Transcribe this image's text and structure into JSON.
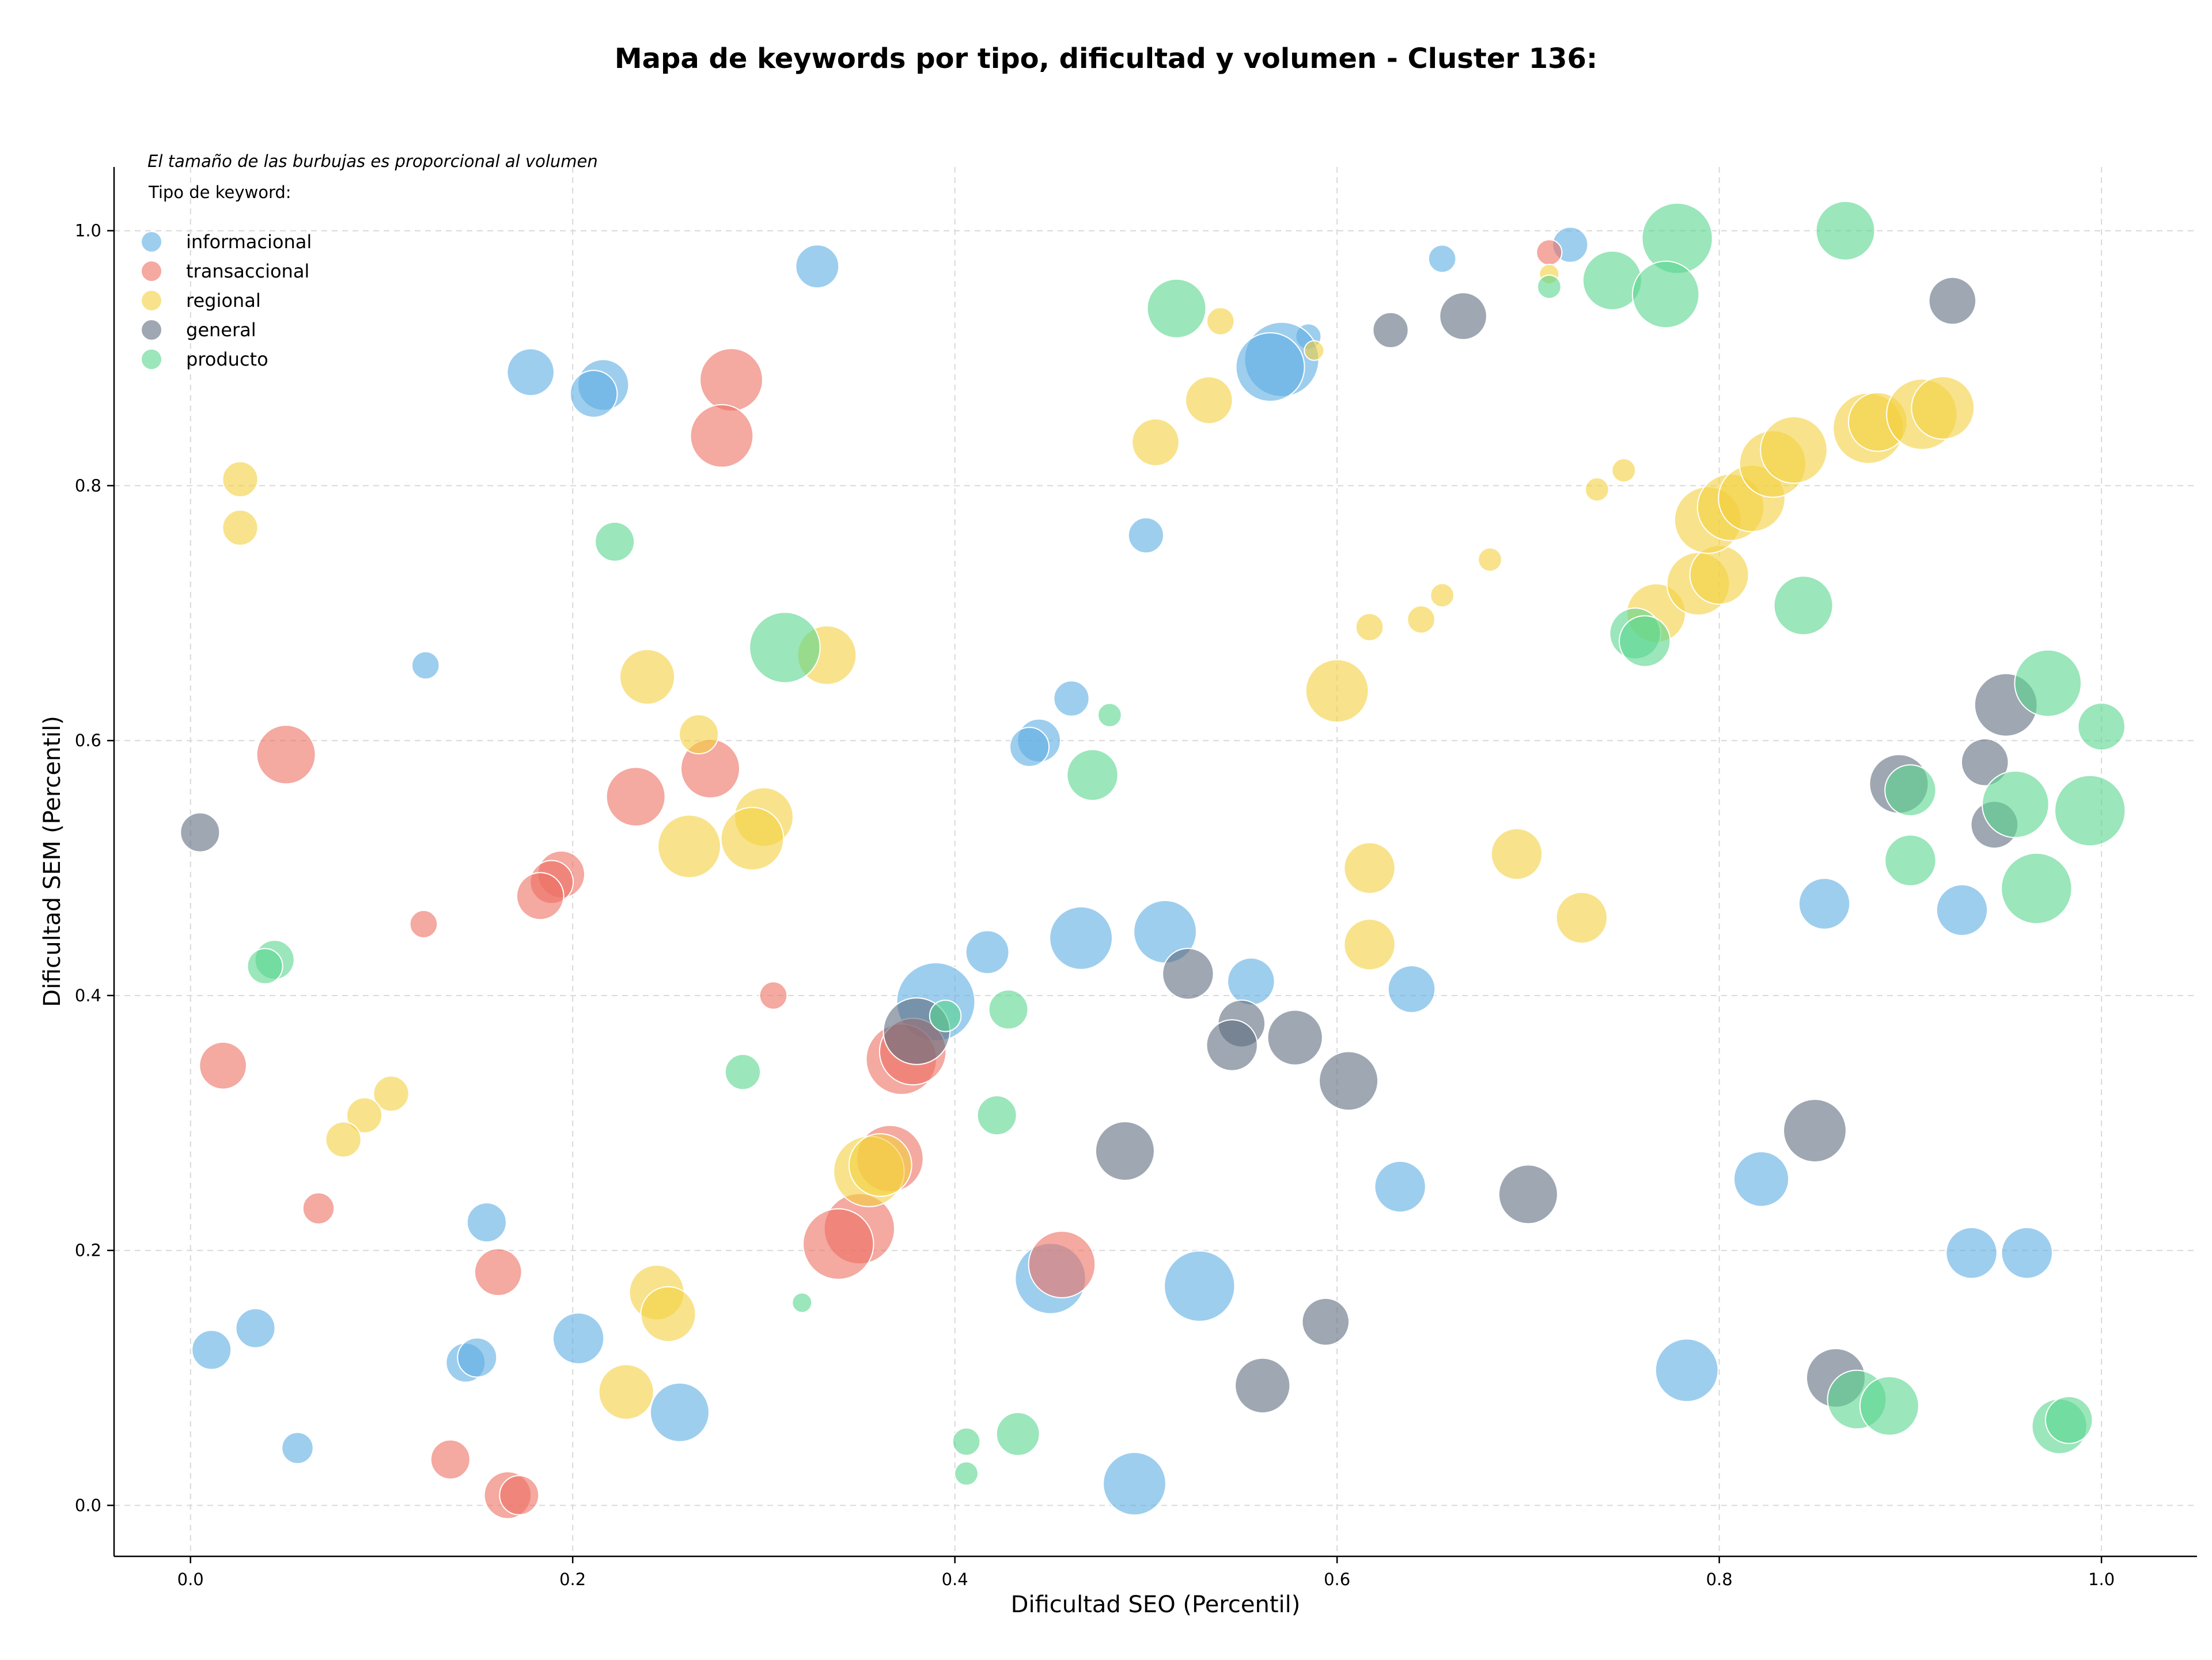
{
  "chart_data": {
    "type": "scatter",
    "title": "Mapa de keywords por tipo, dificultad y volumen - Cluster 136:",
    "xlabel": "Dificultad SEO (Percentil)",
    "ylabel": "Dificultad SEM (Percentil)",
    "xlim": [
      -0.04,
      1.05
    ],
    "ylim": [
      -0.04,
      1.05
    ],
    "xticks": [
      "0.0",
      "0.2",
      "0.4",
      "0.6",
      "0.8",
      "1.0"
    ],
    "yticks": [
      "0.0",
      "0.2",
      "0.4",
      "0.6",
      "0.8",
      "1.0"
    ],
    "grid": true,
    "legend_position": "top-left",
    "legend_title": "Tipo de keyword:",
    "note": "El tamaño de las burbujas es proporcional al volumen",
    "series": [
      {
        "name": "informacional",
        "color": "#5dade2",
        "points": [
          [
            0.328,
            0.972,
            2.2
          ],
          [
            0.178,
            0.889,
            2.4
          ],
          [
            0.216,
            0.879,
            2.6
          ],
          [
            0.211,
            0.872,
            2.4
          ],
          [
            0.655,
            0.978,
            1.4
          ],
          [
            0.722,
            0.989,
            1.8
          ],
          [
            0.585,
            0.917,
            1.3
          ],
          [
            0.571,
            0.899,
            3.8
          ],
          [
            0.565,
            0.893,
            3.5
          ],
          [
            0.123,
            0.659,
            1.4
          ],
          [
            0.5,
            0.761,
            1.8
          ],
          [
            0.461,
            0.633,
            1.8
          ],
          [
            0.444,
            0.6,
            2.2
          ],
          [
            0.439,
            0.595,
            2.0
          ],
          [
            0.39,
            0.395,
            4.0
          ],
          [
            0.417,
            0.434,
            2.2
          ],
          [
            0.466,
            0.445,
            3.2
          ],
          [
            0.51,
            0.45,
            3.2
          ],
          [
            0.555,
            0.411,
            2.4
          ],
          [
            0.639,
            0.405,
            2.4
          ],
          [
            0.855,
            0.472,
            2.6
          ],
          [
            0.927,
            0.467,
            2.6
          ],
          [
            0.155,
            0.222,
            2.0
          ],
          [
            0.203,
            0.131,
            2.6
          ],
          [
            0.011,
            0.122,
            2.0
          ],
          [
            0.034,
            0.139,
            2.0
          ],
          [
            0.144,
            0.112,
            2.0
          ],
          [
            0.15,
            0.116,
            2.0
          ],
          [
            0.056,
            0.045,
            1.6
          ],
          [
            0.256,
            0.073,
            3.0
          ],
          [
            0.45,
            0.178,
            3.6
          ],
          [
            0.528,
            0.172,
            3.6
          ],
          [
            0.494,
            0.017,
            3.2
          ],
          [
            0.633,
            0.25,
            2.6
          ],
          [
            0.822,
            0.256,
            2.8
          ],
          [
            0.783,
            0.106,
            3.2
          ],
          [
            0.932,
            0.198,
            2.6
          ],
          [
            0.961,
            0.198,
            2.6
          ]
        ]
      },
      {
        "name": "transaccional",
        "color": "#ec7063",
        "points": [
          [
            0.283,
            0.883,
            3.2
          ],
          [
            0.278,
            0.839,
            3.2
          ],
          [
            0.05,
            0.589,
            3.0
          ],
          [
            0.272,
            0.578,
            3.0
          ],
          [
            0.233,
            0.556,
            3.0
          ],
          [
            0.194,
            0.495,
            2.4
          ],
          [
            0.189,
            0.489,
            2.2
          ],
          [
            0.183,
            0.478,
            2.4
          ],
          [
            0.122,
            0.456,
            1.4
          ],
          [
            0.305,
            0.4,
            1.4
          ],
          [
            0.017,
            0.345,
            2.4
          ],
          [
            0.372,
            0.35,
            3.6
          ],
          [
            0.378,
            0.356,
            3.4
          ],
          [
            0.366,
            0.272,
            3.4
          ],
          [
            0.35,
            0.217,
            3.6
          ],
          [
            0.339,
            0.205,
            3.6
          ],
          [
            0.456,
            0.189,
            3.4
          ],
          [
            0.067,
            0.233,
            1.6
          ],
          [
            0.161,
            0.183,
            2.4
          ],
          [
            0.136,
            0.036,
            2.0
          ],
          [
            0.166,
            0.008,
            2.4
          ],
          [
            0.172,
            0.008,
            2.0
          ],
          [
            0.711,
            0.983,
            1.3
          ]
        ]
      },
      {
        "name": "regional",
        "color": "#f4d03f",
        "points": [
          [
            0.026,
            0.805,
            1.8
          ],
          [
            0.026,
            0.767,
            1.8
          ],
          [
            0.239,
            0.65,
            2.8
          ],
          [
            0.333,
            0.667,
            3.0
          ],
          [
            0.266,
            0.605,
            2.0
          ],
          [
            0.3,
            0.54,
            3.0
          ],
          [
            0.294,
            0.523,
            3.2
          ],
          [
            0.261,
            0.517,
            3.2
          ],
          [
            0.539,
            0.929,
            1.4
          ],
          [
            0.533,
            0.867,
            2.4
          ],
          [
            0.505,
            0.834,
            2.4
          ],
          [
            0.588,
            0.906,
            1.0
          ],
          [
            0.711,
            0.966,
            1.0
          ],
          [
            0.6,
            0.639,
            3.2
          ],
          [
            0.617,
            0.689,
            1.4
          ],
          [
            0.644,
            0.695,
            1.4
          ],
          [
            0.655,
            0.714,
            1.2
          ],
          [
            0.68,
            0.742,
            1.2
          ],
          [
            0.736,
            0.797,
            1.2
          ],
          [
            0.75,
            0.812,
            1.2
          ],
          [
            0.767,
            0.7,
            3.0
          ],
          [
            0.789,
            0.723,
            3.2
          ],
          [
            0.8,
            0.73,
            3.0
          ],
          [
            0.794,
            0.773,
            3.4
          ],
          [
            0.806,
            0.783,
            3.4
          ],
          [
            0.817,
            0.79,
            3.4
          ],
          [
            0.828,
            0.817,
            3.4
          ],
          [
            0.839,
            0.828,
            3.4
          ],
          [
            0.878,
            0.845,
            3.6
          ],
          [
            0.883,
            0.85,
            3.0
          ],
          [
            0.906,
            0.856,
            3.6
          ],
          [
            0.917,
            0.861,
            3.2
          ],
          [
            0.617,
            0.5,
            2.6
          ],
          [
            0.617,
            0.44,
            2.6
          ],
          [
            0.694,
            0.511,
            2.6
          ],
          [
            0.728,
            0.461,
            2.6
          ],
          [
            0.355,
            0.262,
            3.6
          ],
          [
            0.361,
            0.267,
            3.2
          ],
          [
            0.105,
            0.323,
            1.8
          ],
          [
            0.091,
            0.306,
            1.8
          ],
          [
            0.08,
            0.287,
            1.8
          ],
          [
            0.244,
            0.167,
            2.8
          ],
          [
            0.25,
            0.15,
            2.8
          ],
          [
            0.228,
            0.089,
            2.8
          ]
        ]
      },
      {
        "name": "general",
        "color": "#5d6d7e",
        "points": [
          [
            0.005,
            0.528,
            2.0
          ],
          [
            0.628,
            0.922,
            1.8
          ],
          [
            0.666,
            0.933,
            2.4
          ],
          [
            0.922,
            0.945,
            2.4
          ],
          [
            0.95,
            0.628,
            3.2
          ],
          [
            0.894,
            0.566,
            3.0
          ],
          [
            0.939,
            0.583,
            2.4
          ],
          [
            0.944,
            0.534,
            2.4
          ],
          [
            0.38,
            0.372,
            3.4
          ],
          [
            0.522,
            0.417,
            2.6
          ],
          [
            0.55,
            0.378,
            2.4
          ],
          [
            0.545,
            0.361,
            2.6
          ],
          [
            0.578,
            0.367,
            2.8
          ],
          [
            0.606,
            0.333,
            3.0
          ],
          [
            0.489,
            0.278,
            3.0
          ],
          [
            0.7,
            0.244,
            3.0
          ],
          [
            0.85,
            0.294,
            3.2
          ],
          [
            0.594,
            0.144,
            2.4
          ],
          [
            0.561,
            0.094,
            2.8
          ],
          [
            0.861,
            0.1,
            3.0
          ]
        ]
      },
      {
        "name": "producto",
        "color": "#58d68d",
        "points": [
          [
            0.866,
            1.0,
            3.0
          ],
          [
            0.778,
            0.994,
            3.6
          ],
          [
            0.744,
            0.961,
            3.0
          ],
          [
            0.772,
            0.95,
            3.4
          ],
          [
            0.711,
            0.956,
            1.2
          ],
          [
            0.516,
            0.939,
            3.0
          ],
          [
            0.222,
            0.756,
            2.0
          ],
          [
            0.311,
            0.673,
            3.6
          ],
          [
            0.472,
            0.573,
            2.6
          ],
          [
            0.481,
            0.62,
            1.2
          ],
          [
            0.756,
            0.684,
            2.6
          ],
          [
            0.761,
            0.678,
            2.6
          ],
          [
            0.844,
            0.706,
            3.0
          ],
          [
            0.972,
            0.645,
            3.4
          ],
          [
            1.0,
            0.611,
            2.4
          ],
          [
            0.9,
            0.561,
            2.6
          ],
          [
            0.955,
            0.55,
            3.4
          ],
          [
            0.994,
            0.545,
            3.6
          ],
          [
            0.9,
            0.506,
            2.6
          ],
          [
            0.966,
            0.484,
            3.6
          ],
          [
            0.044,
            0.428,
            2.0
          ],
          [
            0.039,
            0.423,
            1.8
          ],
          [
            0.395,
            0.384,
            1.6
          ],
          [
            0.428,
            0.389,
            2.0
          ],
          [
            0.289,
            0.34,
            1.8
          ],
          [
            0.422,
            0.306,
            2.0
          ],
          [
            0.32,
            0.159,
            1.0
          ],
          [
            0.433,
            0.056,
            2.2
          ],
          [
            0.406,
            0.05,
            1.4
          ],
          [
            0.406,
            0.025,
            1.2
          ],
          [
            0.872,
            0.083,
            3.0
          ],
          [
            0.889,
            0.078,
            3.0
          ],
          [
            0.978,
            0.062,
            2.8
          ],
          [
            0.983,
            0.067,
            2.4
          ]
        ]
      }
    ]
  }
}
